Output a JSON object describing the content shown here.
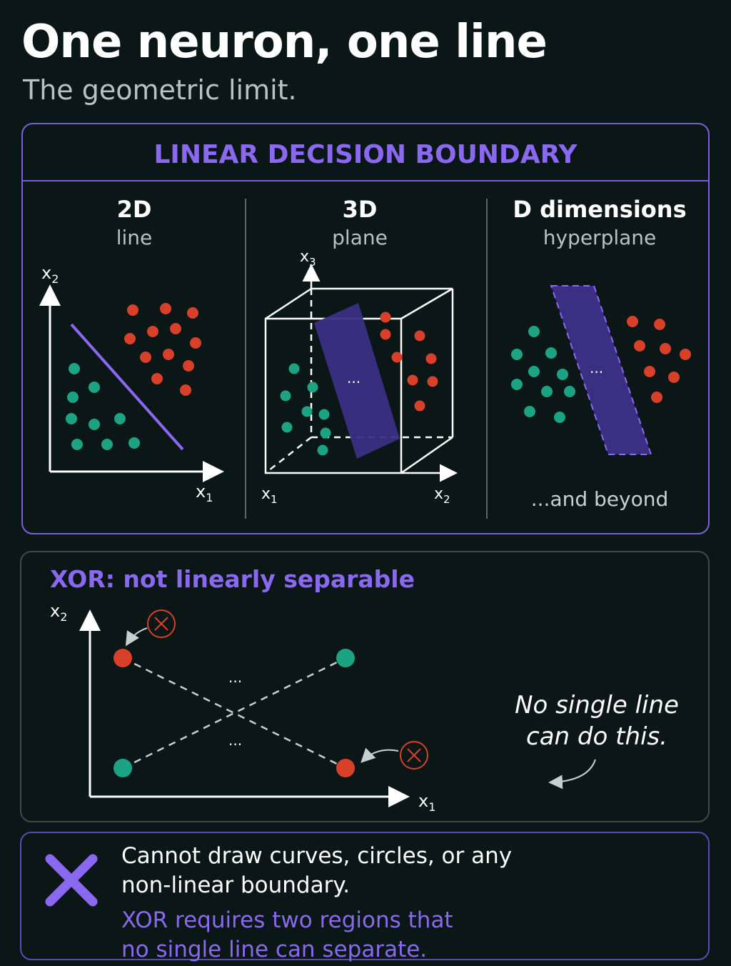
{
  "header": {
    "title": "One neuron, one line",
    "subtitle": "The geometric limit."
  },
  "boundary_panel": {
    "heading": "LINEAR DECISION BOUNDARY",
    "columns": [
      {
        "title": "2D",
        "subtitle": "line",
        "axis_x": "x",
        "axis_x_sub": "1",
        "axis_y": "x",
        "axis_y_sub": "2"
      },
      {
        "title": "3D",
        "subtitle": "plane",
        "axis_x": "x",
        "axis_x_sub": "1",
        "axis_y": "x",
        "axis_y_sub": "2",
        "axis_z": "x",
        "axis_z_sub": "3",
        "ellipsis": "..."
      },
      {
        "title": "D dimensions",
        "subtitle": "hyperplane",
        "ellipsis": "...",
        "footer": "...and beyond"
      }
    ]
  },
  "xor_panel": {
    "heading": "XOR: not linearly separable",
    "axis_x": "x",
    "axis_x_sub": "1",
    "axis_y": "x",
    "axis_y_sub": "2",
    "ellipsis_top": "...",
    "ellipsis_bottom": "...",
    "caption_line1": "No single line",
    "caption_line2": "can do this."
  },
  "note_panel": {
    "line1": "Cannot draw curves, circles, or any",
    "line2": "non-linear boundary.",
    "line3": "XOR requires two regions that",
    "line4": "no single line can separate."
  },
  "colors": {
    "background": "#0b1717",
    "accent_purple": "#8b68f0",
    "class_red": "#d8402a",
    "class_green": "#1ba383",
    "plane_fill": "#3b2f84"
  }
}
